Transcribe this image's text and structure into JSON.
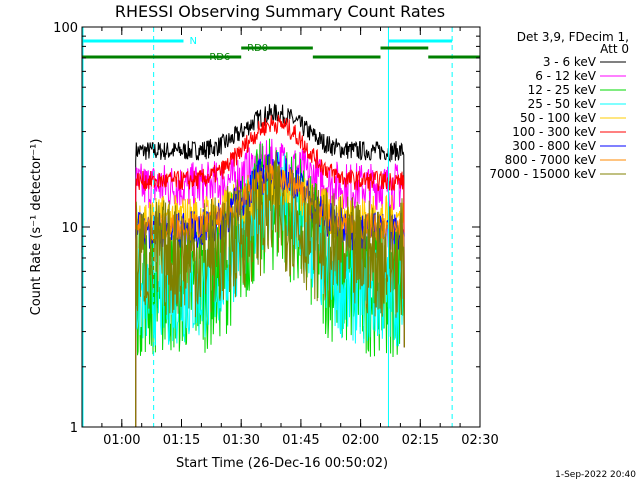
{
  "chart_data": {
    "type": "line",
    "title": "RHESSI Observing Summary Count Rates",
    "xlabel": "Start Time (26-Dec-16 00:50:02)",
    "ylabel": "Count Rate (s⁻¹ detector⁻¹)",
    "y_scale": "log",
    "ylim": [
      1,
      100
    ],
    "xlim_minutes": [
      50,
      150
    ],
    "x_ticks": [
      {
        "m": 60,
        "label": "01:00"
      },
      {
        "m": 75,
        "label": "01:15"
      },
      {
        "m": 90,
        "label": "01:30"
      },
      {
        "m": 105,
        "label": "01:45"
      },
      {
        "m": 120,
        "label": "02:00"
      },
      {
        "m": 135,
        "label": "02:15"
      },
      {
        "m": 150,
        "label": "02:30"
      }
    ],
    "y_ticks": [
      {
        "v": 1,
        "label": "1"
      },
      {
        "v": 10,
        "label": "10"
      },
      {
        "v": 100,
        "label": "100"
      }
    ],
    "legend_header": [
      "Det 3,9, FDecim 1,",
      "Att 0"
    ],
    "legend_position": "right",
    "data_start_minute": 63.5,
    "data_end_minute": 131.0,
    "series": [
      {
        "name": "3 - 6 keV",
        "color": "#000000",
        "base": 24,
        "peak": 37,
        "noise": 0.05
      },
      {
        "name": "6 - 12 keV",
        "color": "#ff00ff",
        "base": 16,
        "peak": 21,
        "noise": 0.12
      },
      {
        "name": "12 - 25 keV",
        "color": "#00d800",
        "base": 5.0,
        "peak": 13,
        "noise": 0.35
      },
      {
        "name": "25 - 50 keV",
        "color": "#00ffff",
        "base": 4.5,
        "peak": 14,
        "noise": 0.25
      },
      {
        "name": "50 - 100 keV",
        "color": "#ffcc00",
        "base": 11,
        "peak": 16,
        "noise": 0.12
      },
      {
        "name": "100 - 300 keV",
        "color": "#ff0000",
        "base": 17,
        "peak": 33,
        "noise": 0.05
      },
      {
        "name": "300 - 800 keV",
        "color": "#0000ff",
        "base": 9.5,
        "peak": 19,
        "noise": 0.1
      },
      {
        "name": "800 - 7000 keV",
        "color": "#ff8800",
        "base": 10,
        "peak": 18,
        "noise": 0.07
      },
      {
        "name": "7000 - 15000 keV",
        "color": "#808000",
        "base": 7,
        "peak": 12,
        "noise": 0.3
      }
    ],
    "annotations": [
      {
        "text": "N",
        "color": "#00ffff"
      },
      {
        "text": "RD0",
        "color": "#008000"
      },
      {
        "text": "RD6",
        "color": "#008000"
      }
    ],
    "night_bars": [
      [
        50,
        75.5
      ],
      [
        127,
        143
      ]
    ],
    "decimation_upper": [
      [
        90,
        108
      ],
      [
        125,
        137
      ]
    ],
    "decimation_lower": [
      [
        50,
        90
      ],
      [
        108,
        125
      ],
      [
        137,
        150
      ]
    ],
    "rd6_bar": [
      90,
      108
    ],
    "night_edges_solid": [
      127
    ],
    "night_edges_dashed": [
      68,
      143
    ],
    "timestamp": "1-Sep-2022 20:40"
  }
}
